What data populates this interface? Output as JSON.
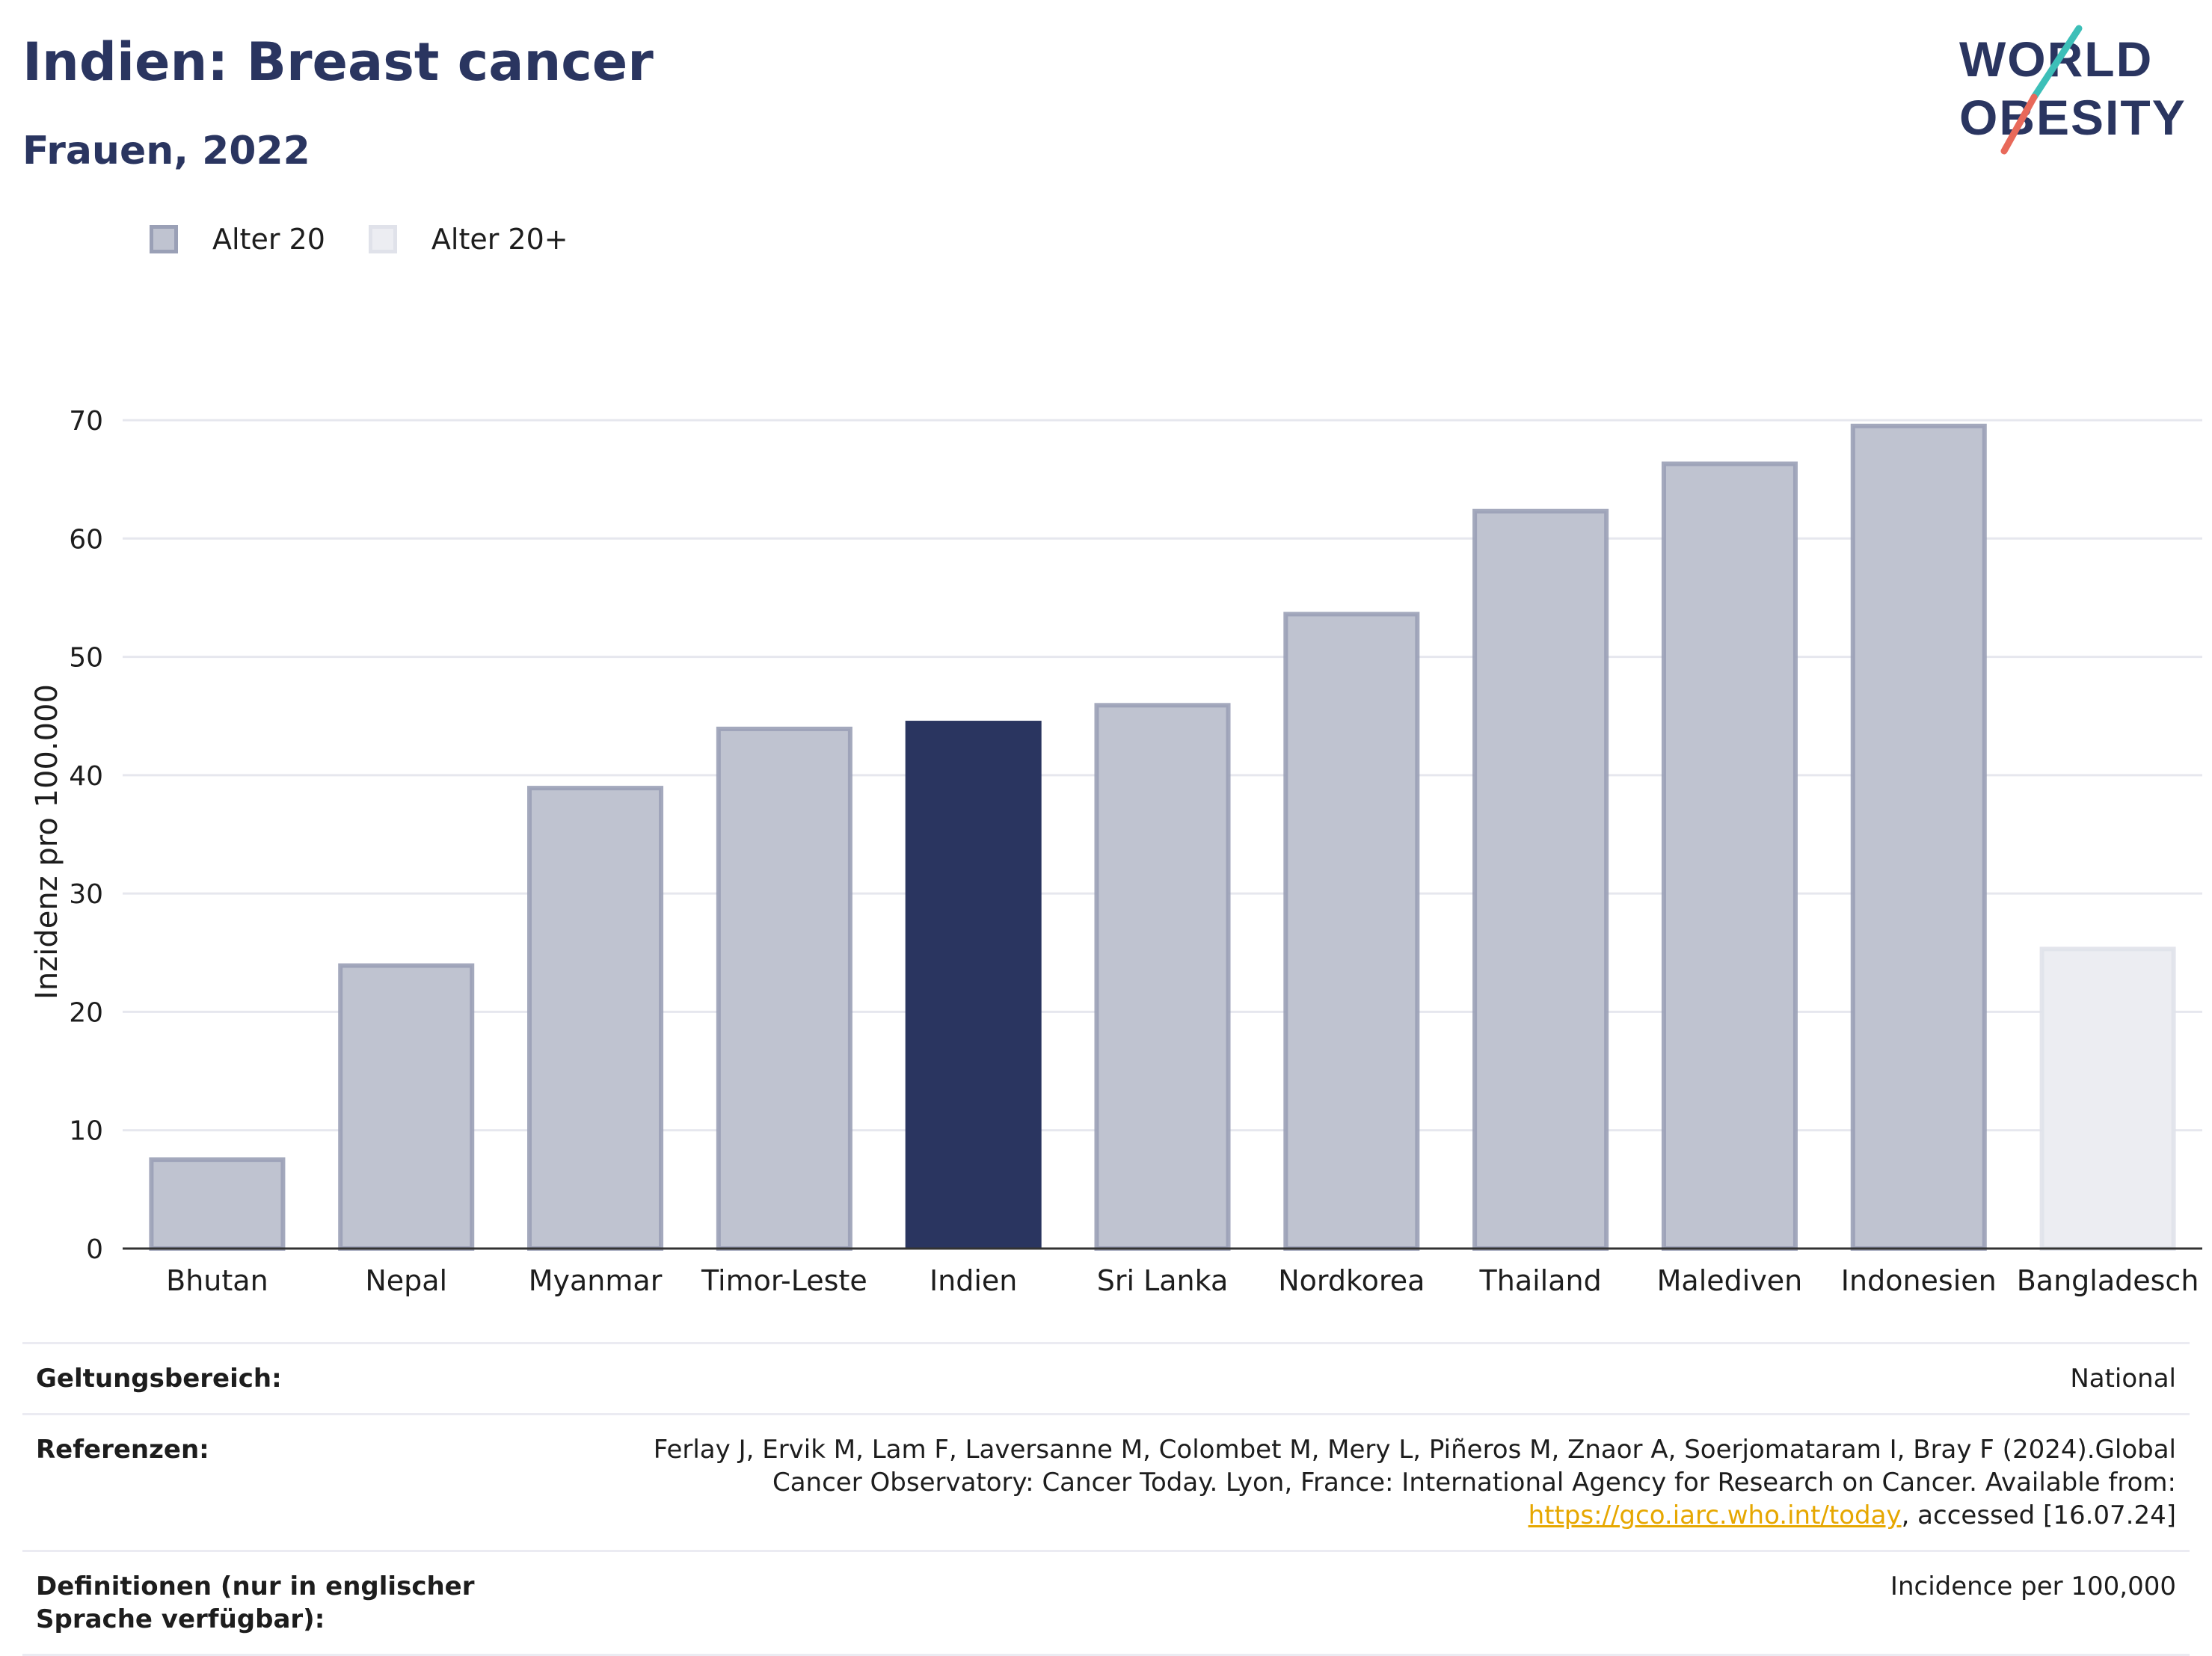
{
  "header": {
    "title": "Indien: Breast cancer",
    "subtitle": "Frauen, 2022"
  },
  "logo": {
    "line1": "WORLD",
    "line2": "OBESITY"
  },
  "legend": [
    {
      "label": "Alter 20",
      "fill": "#bfc3d0",
      "stroke": "#9aa0b6"
    },
    {
      "label": "Alter 20+",
      "fill": "#ecedf2",
      "stroke": "#e0e2ea"
    }
  ],
  "colors": {
    "highlight": "#2a3560",
    "bar": "#bfc3d0",
    "bar_stroke": "#9aa0b6",
    "bar_light": "#ecedf2",
    "bar_light_stroke": "#e0e2ea",
    "grid": "#e6e7ee",
    "axis": "#333333",
    "title": "#2a3560",
    "link": "#e6a700"
  },
  "chart_data": {
    "type": "bar",
    "title": "Indien: Breast cancer",
    "subtitle": "Frauen, 2022",
    "xlabel": "",
    "ylabel": "Inzidenz pro 100.000",
    "ylim": [
      0,
      70
    ],
    "yticks": [
      0,
      10,
      20,
      30,
      40,
      50,
      60,
      70
    ],
    "grid": true,
    "legend_position": "top-left",
    "categories": [
      "Bhutan",
      "Nepal",
      "Myanmar",
      "Timor-Leste",
      "Indien",
      "Sri Lanka",
      "Nordkorea",
      "Thailand",
      "Malediven",
      "Indonesien",
      "Bangladesch"
    ],
    "values": [
      7.7,
      24.1,
      39.1,
      44.1,
      44.6,
      46.1,
      53.8,
      62.5,
      66.5,
      69.7,
      25.5
    ],
    "groups": [
      "Alter 20",
      "Alter 20",
      "Alter 20",
      "Alter 20",
      "highlight",
      "Alter 20",
      "Alter 20",
      "Alter 20",
      "Alter 20",
      "Alter 20",
      "Alter 20+"
    ]
  },
  "info": {
    "scope_label": "Geltungsbereich:",
    "scope_value": "National",
    "ref_label": "Referenzen:",
    "ref_text_1": "Ferlay J, Ervik M, Lam F, Laversanne M, Colombet M, Mery L, Piñeros M, Znaor A, Soerjomataram I, Bray F (2024).Global Cancer Observatory: Cancer Today. Lyon, France: International Agency for Research on Cancer. Available from: ",
    "ref_link": "https://gco.iarc.who.int/today",
    "ref_text_2": ", accessed [16.07.24]",
    "def_label": "Definitionen (nur in englischer Sprache verfügbar):",
    "def_value": "Incidence per 100,000"
  }
}
